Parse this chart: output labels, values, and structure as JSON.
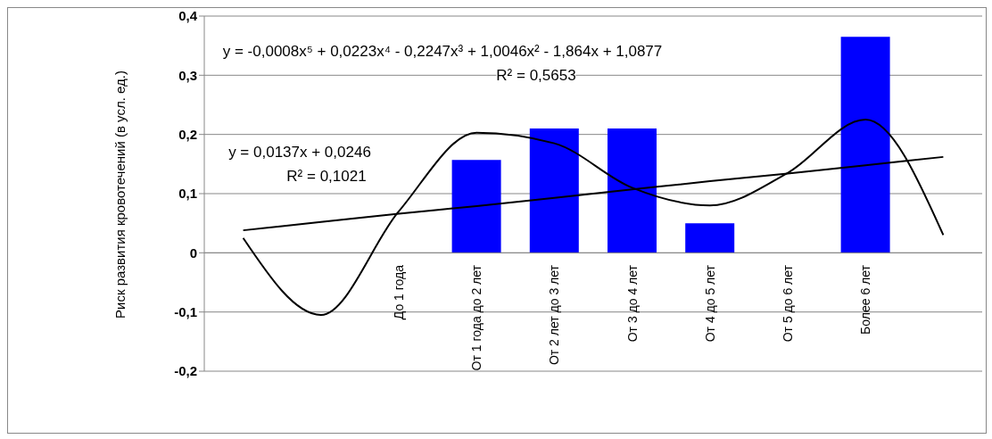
{
  "chart_data": {
    "type": "bar",
    "ylabel": "Риск развития кровотечений (в усл. ед.)",
    "categories": [
      null,
      null,
      "До 1 года",
      "От 1 года до 2 лет",
      "От 2 лет до 3 лет",
      "От 3 до 4 лет",
      "От 4 до 5 лет",
      "От 5 до 6 лет",
      "Более 6 лет",
      null
    ],
    "series": [
      {
        "color": "#0000ff",
        "values": [
          0,
          0,
          0,
          0.157,
          0.21,
          0.21,
          0.05,
          0,
          0.365,
          0
        ]
      },
      {
        "type": "line",
        "color": "#000000",
        "values": [
          0.025,
          -0.105,
          0.07,
          0.203,
          0.185,
          0.11,
          0.08,
          0.135,
          0.225,
          0.03
        ]
      },
      {
        "type": "line",
        "color": "#000000",
        "values": [
          0.038,
          0.052,
          0.066,
          0.079,
          0.093,
          0.107,
          0.121,
          0.134,
          0.148,
          0.162
        ]
      }
    ],
    "ylim": [
      -0.2,
      0.4
    ],
    "yticks": [
      {
        "value": -0.2,
        "label": "-0,2"
      },
      {
        "value": -0.1,
        "label": "-0,1"
      },
      {
        "value": 0,
        "label": "0"
      },
      {
        "value": 0.1,
        "label": "0,1"
      },
      {
        "value": 0.2,
        "label": "0,2"
      },
      {
        "value": 0.3,
        "label": "0,3"
      },
      {
        "value": 0.4,
        "label": "0,4"
      }
    ],
    "grid": "y",
    "legend": false,
    "annotations": [
      "y = -0,0008x⁵ + 0,0223x⁴ - 0,2247x³ + 1,0046x² - 1,864x + 1,0877",
      "R² = 0,5653",
      "y = 0,0137x + 0,0246",
      "R² = 0,1021"
    ]
  }
}
